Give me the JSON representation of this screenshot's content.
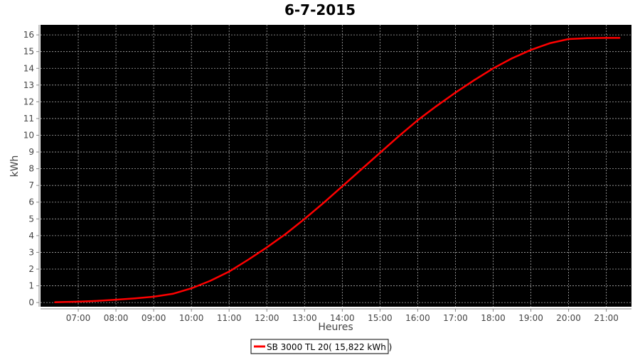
{
  "chart_data": {
    "type": "line",
    "title": "6-7-2015",
    "xlabel": "Heures",
    "ylabel": "kWh",
    "xlim": [
      "06:00",
      "21:40"
    ],
    "ylim": [
      0,
      16.6
    ],
    "x_ticks": [
      "07:00",
      "08:00",
      "09:00",
      "10:00",
      "11:00",
      "12:00",
      "13:00",
      "14:00",
      "15:00",
      "16:00",
      "17:00",
      "18:00",
      "19:00",
      "20:00",
      "21:00"
    ],
    "y_ticks": [
      0,
      1,
      2,
      3,
      4,
      5,
      6,
      7,
      8,
      9,
      10,
      11,
      12,
      13,
      14,
      15,
      16
    ],
    "grid": true,
    "legend_position": "bottom",
    "background": "#000000",
    "series": [
      {
        "name": "SB 3000 TL 20( 15,822 kWh )",
        "color": "#ff0000",
        "x": [
          "06:23",
          "07:00",
          "07:30",
          "08:00",
          "08:30",
          "09:00",
          "09:30",
          "10:00",
          "10:30",
          "11:00",
          "11:30",
          "12:00",
          "12:30",
          "13:00",
          "13:30",
          "14:00",
          "14:30",
          "15:00",
          "15:30",
          "16:00",
          "16:30",
          "17:00",
          "17:30",
          "18:00",
          "18:30",
          "19:00",
          "19:30",
          "20:00",
          "20:30",
          "21:00",
          "21:21"
        ],
        "y": [
          0.02,
          0.05,
          0.1,
          0.17,
          0.25,
          0.35,
          0.52,
          0.85,
          1.3,
          1.85,
          2.55,
          3.3,
          4.1,
          5.0,
          5.95,
          6.95,
          7.95,
          8.95,
          9.95,
          10.9,
          11.75,
          12.55,
          13.3,
          14.0,
          14.6,
          15.1,
          15.5,
          15.75,
          15.8,
          15.82,
          15.82
        ]
      }
    ]
  }
}
